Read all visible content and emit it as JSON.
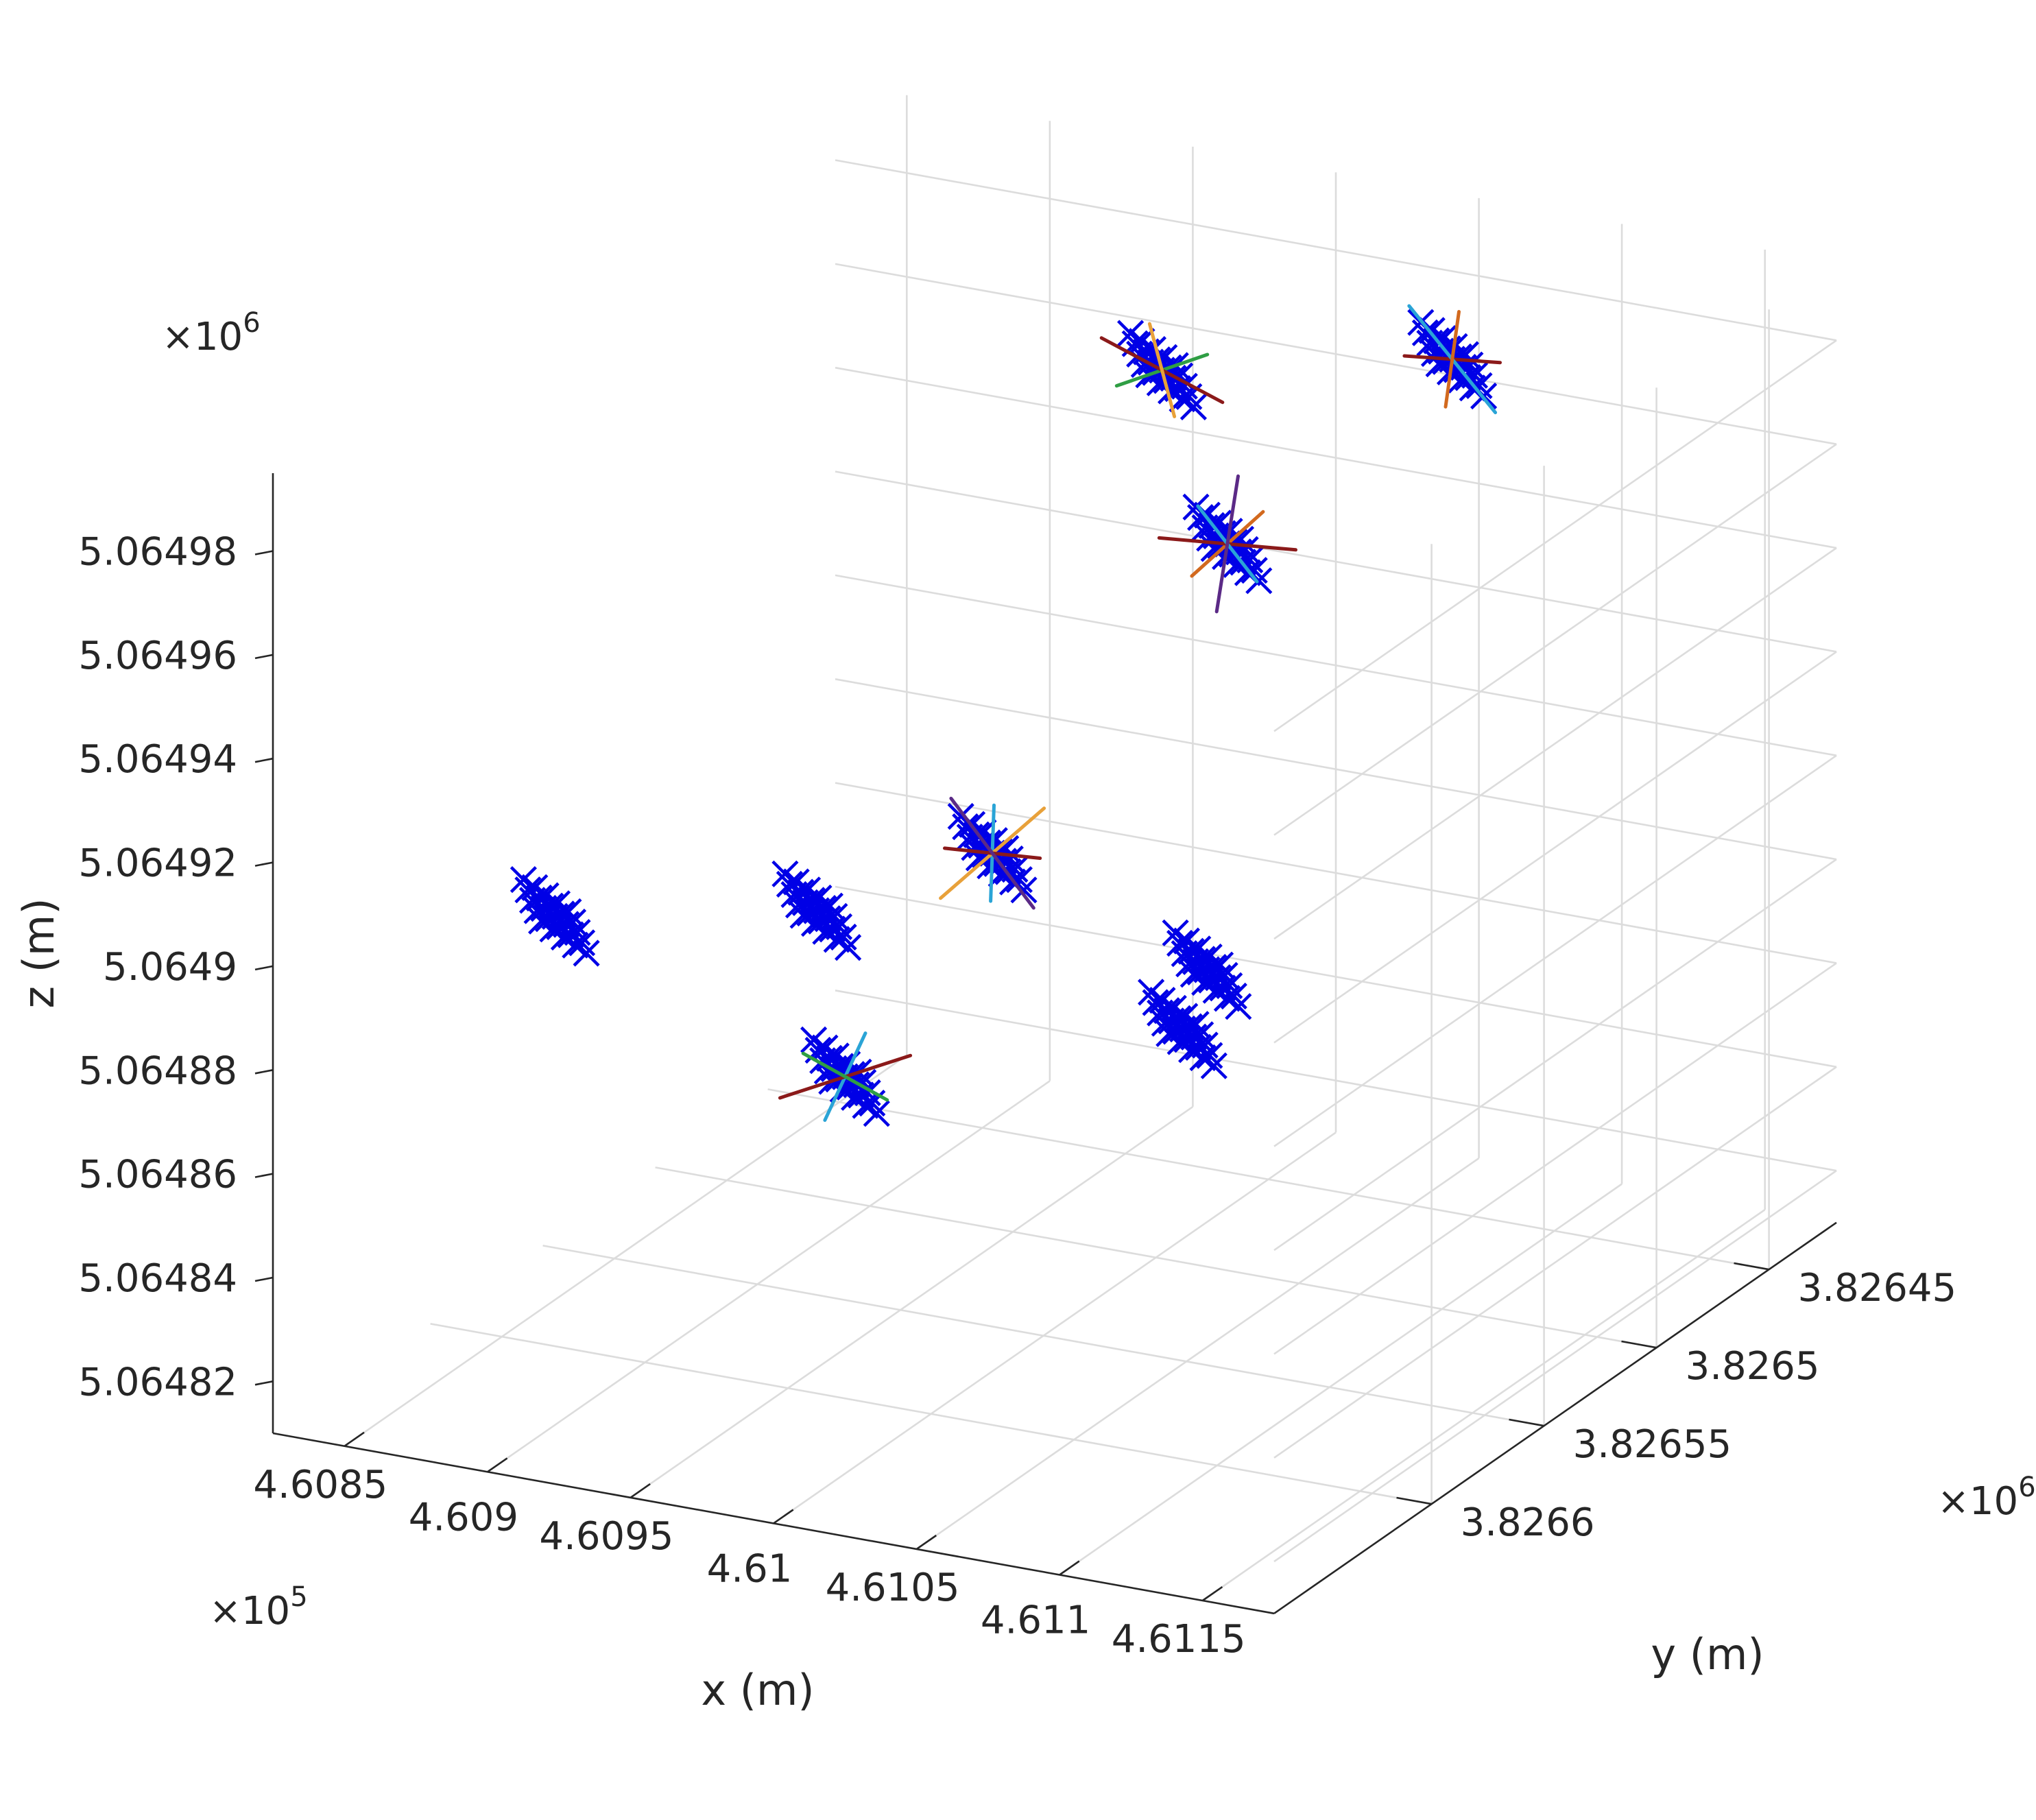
{
  "chart_data": {
    "type": "scatter",
    "title": "",
    "xlabel": "x (m)",
    "ylabel": "y (m)",
    "zlabel": "z (m)",
    "x_ticks": [
      "4.6085",
      "4.609",
      "4.6095",
      "4.61",
      "4.6105",
      "4.611",
      "4.6115"
    ],
    "y_ticks": [
      "3.82645",
      "3.8265",
      "3.82655",
      "3.8266"
    ],
    "z_ticks": [
      "5.06482",
      "5.06484",
      "5.06486",
      "5.06488",
      "5.0649",
      "5.06492",
      "5.06494",
      "5.06496",
      "5.06498"
    ],
    "x_multiplier": "×10",
    "x_multiplier_exp": "5",
    "y_multiplier": "×10",
    "y_multiplier_exp": "6",
    "z_multiplier": "×10",
    "z_multiplier_exp": "6",
    "xlim": [
      460825,
      461175
    ],
    "ylim": [
      3826420,
      3826670
    ],
    "zlim": [
      5064810,
      5064995
    ],
    "grid": true,
    "legend": "none",
    "marker": "x",
    "marker_color": "#0000e6",
    "clusters": [
      {
        "x": 460970,
        "y": 3826450,
        "z": 5064836,
        "has_tracks": false
      },
      {
        "x": 461065,
        "y": 3826560,
        "z": 5064890,
        "has_tracks": false
      },
      {
        "x": 460900,
        "y": 3826640,
        "z": 5064908,
        "has_tracks": false
      },
      {
        "x": 460960,
        "y": 3826600,
        "z": 5064903,
        "has_tracks": false
      },
      {
        "x": 460990,
        "y": 3826560,
        "z": 5064905,
        "has_tracks": true,
        "track_colors": [
          "#2aa4d6",
          "#e8a13a",
          "#8b1a1a",
          "#5b2a86"
        ]
      },
      {
        "x": 460970,
        "y": 3826600,
        "z": 5064872,
        "has_tracks": true,
        "track_colors": [
          "#2aa4d6",
          "#8b1a1a",
          "#2f9e44"
        ]
      },
      {
        "x": 461025,
        "y": 3826500,
        "z": 5064950,
        "has_tracks": true,
        "track_colors": [
          "#d2691e",
          "#8b1a1a",
          "#2aa4d6",
          "#5b2a86"
        ]
      },
      {
        "x": 461010,
        "y": 3826510,
        "z": 5064985,
        "has_tracks": true,
        "track_colors": [
          "#2f9e44",
          "#8b1a1a",
          "#e8a13a"
        ]
      },
      {
        "x": 461080,
        "y": 3826470,
        "z": 5064982,
        "has_tracks": true,
        "track_colors": [
          "#8b1a1a",
          "#2aa4d6",
          "#d2691e"
        ]
      }
    ]
  }
}
